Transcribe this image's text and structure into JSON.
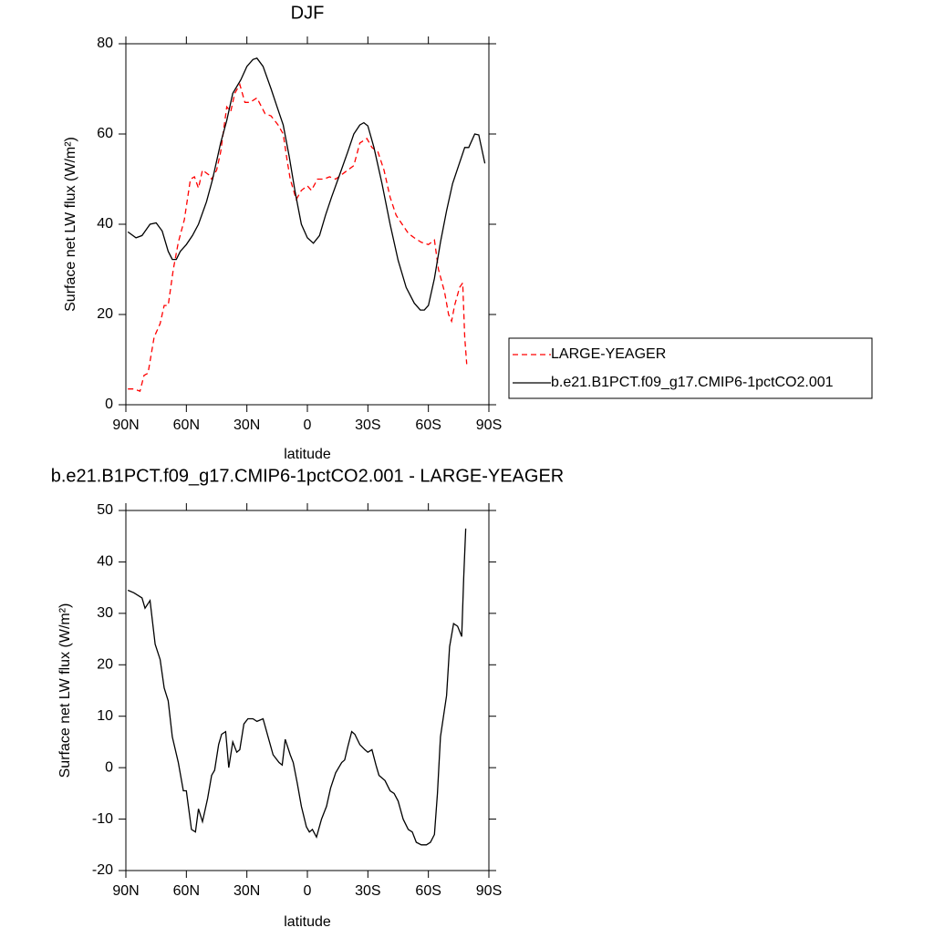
{
  "chart_data": [
    {
      "type": "line",
      "title": "DJF",
      "xlabel": "latitude",
      "ylabel": "Surface net LW flux (W/m²)",
      "xlim": [
        90,
        -90
      ],
      "ylim": [
        0,
        80
      ],
      "xticks": [
        {
          "value": 90,
          "label": "90N"
        },
        {
          "value": 60,
          "label": "60N"
        },
        {
          "value": 30,
          "label": "30N"
        },
        0,
        {
          "value": -30,
          "label": "30S"
        },
        {
          "value": -60,
          "label": "60S"
        },
        {
          "value": -90,
          "label": "90S"
        }
      ],
      "yticks": [
        0,
        20,
        40,
        60,
        80
      ],
      "legend": "right",
      "series": [
        {
          "name": "LARGE-YEAGER",
          "color": "#ff0000",
          "dash": "dashed",
          "x": [
            89,
            86,
            83,
            81,
            79,
            76,
            73,
            71,
            69,
            66.5,
            64,
            61,
            58,
            56,
            54,
            52,
            49,
            47.5,
            45,
            43,
            40,
            38,
            36,
            33.5,
            31,
            28.5,
            25,
            21,
            18,
            14.5,
            12,
            10,
            8.5,
            5.5,
            3,
            0,
            -2,
            -5,
            -8,
            -11,
            -14,
            -17,
            -20,
            -23,
            -26,
            -29.5,
            -32,
            -35,
            -38,
            -41,
            -44,
            -47,
            -50,
            -53,
            -56.5,
            -60,
            -63,
            -65,
            -68,
            -70,
            -71.5,
            -73,
            -75.5,
            -77,
            -78,
            -79
          ],
          "values": [
            3.5,
            3.5,
            3,
            6.5,
            7,
            15,
            18,
            22,
            22,
            30,
            36,
            41,
            50,
            50.5,
            48,
            52,
            51,
            50,
            52,
            56,
            66,
            65,
            69,
            71,
            67,
            67,
            68,
            64.5,
            64,
            62,
            60,
            54,
            50,
            45.5,
            47.5,
            48.5,
            47.5,
            50,
            50,
            50.5,
            50,
            51,
            52,
            53,
            58,
            59,
            57,
            56,
            52,
            46,
            42,
            40,
            38,
            37,
            36,
            35.5,
            36.5,
            30,
            25,
            20,
            18.5,
            22,
            26,
            27,
            15,
            9
          ]
        },
        {
          "name": "b.e21.B1PCT.f09_g17.CMIP6-1pctCO2.001",
          "color": "#000000",
          "dash": "solid",
          "x": [
            89,
            85,
            82,
            78,
            75,
            72,
            69,
            67,
            65,
            63,
            60,
            57,
            54,
            50,
            47,
            43,
            40,
            37,
            33,
            30,
            27,
            25,
            22,
            18,
            15,
            12,
            9,
            6,
            3,
            0,
            -3,
            -6,
            -9,
            -12,
            -16,
            -20,
            -23,
            -26,
            -28,
            -30,
            -33,
            -37,
            -41,
            -45,
            -49,
            -53,
            -56,
            -58,
            -60,
            -63,
            -66,
            -69,
            -72,
            -75,
            -78,
            -80,
            -83,
            -85,
            -88
          ],
          "values": [
            38.3,
            37,
            37.5,
            40,
            40.3,
            38.5,
            34,
            32.2,
            32.2,
            34,
            35.5,
            37.5,
            40,
            45,
            50,
            58,
            63,
            69,
            72,
            75,
            76.5,
            76.8,
            75,
            70,
            66,
            62,
            55,
            47,
            40,
            37,
            35.8,
            37.5,
            42,
            46,
            51,
            56,
            60,
            62,
            62.5,
            61.8,
            57,
            49,
            40,
            32,
            26,
            22.5,
            21,
            21,
            22,
            28,
            36,
            43,
            49,
            53,
            57,
            57,
            60,
            59.8,
            53.5
          ]
        }
      ]
    },
    {
      "type": "line",
      "title": "b.e21.B1PCT.f09_g17.CMIP6-1pctCO2.001 - LARGE-YEAGER",
      "xlabel": "latitude",
      "ylabel": "Surface net LW flux (W/m²)",
      "xlim": [
        90,
        -90
      ],
      "ylim": [
        -20,
        50
      ],
      "xticks": [
        {
          "value": 90,
          "label": "90N"
        },
        {
          "value": 60,
          "label": "60N"
        },
        {
          "value": 30,
          "label": "30N"
        },
        0,
        {
          "value": -30,
          "label": "30S"
        },
        {
          "value": -60,
          "label": "60S"
        },
        {
          "value": -90,
          "label": "90S"
        }
      ],
      "yticks": [
        -20,
        -10,
        0,
        10,
        20,
        30,
        40,
        50
      ],
      "series": [
        {
          "color": "#000000",
          "dash": "solid",
          "x": [
            89,
            86,
            82,
            80.5,
            78,
            75.5,
            73,
            71,
            69,
            67,
            64,
            61.5,
            60,
            57.5,
            55.5,
            54,
            52,
            49.5,
            47.5,
            46,
            44,
            42.5,
            40.5,
            39,
            37,
            35,
            33.5,
            31.5,
            29.5,
            27,
            25,
            22,
            19.5,
            17,
            14,
            12.5,
            11,
            8.5,
            7,
            5,
            3,
            0.5,
            -1,
            -2.5,
            -4.5,
            -7,
            -9.5,
            -11.5,
            -14,
            -17,
            -18.5,
            -20,
            -22,
            -23.5,
            -26,
            -28.5,
            -30,
            -32,
            -34,
            -35.5,
            -38.5,
            -41,
            -43,
            -45,
            -47.5,
            -50,
            -52,
            -54,
            -56.5,
            -59,
            -61,
            -63,
            -64.5,
            -66,
            -69,
            -70.5,
            -72.5,
            -74.5,
            -76.5,
            -77.5,
            -78.5
          ],
          "values": [
            34.5,
            34,
            33,
            31,
            32.5,
            24,
            21,
            15.5,
            13,
            6,
            1,
            -4.5,
            -4.5,
            -12,
            -12.5,
            -8,
            -10.5,
            -6,
            -1.5,
            -0.5,
            4.5,
            6.5,
            7,
            0,
            5,
            3,
            3.5,
            8.5,
            9.5,
            9.5,
            9,
            9.5,
            6,
            2.5,
            1,
            0.5,
            5.5,
            2.5,
            1,
            -3,
            -7.5,
            -11.5,
            -12.5,
            -12,
            -13.5,
            -10,
            -7.5,
            -4,
            -1,
            1,
            1.5,
            4,
            7,
            6.5,
            4.5,
            3.5,
            3,
            3.5,
            0.5,
            -1.5,
            -2.5,
            -4.5,
            -5,
            -6.5,
            -10,
            -12,
            -12.5,
            -14.5,
            -15,
            -15,
            -14.5,
            -13,
            -5,
            6,
            14,
            23.5,
            28,
            27.5,
            25.5,
            37,
            46.5
          ]
        }
      ]
    }
  ]
}
